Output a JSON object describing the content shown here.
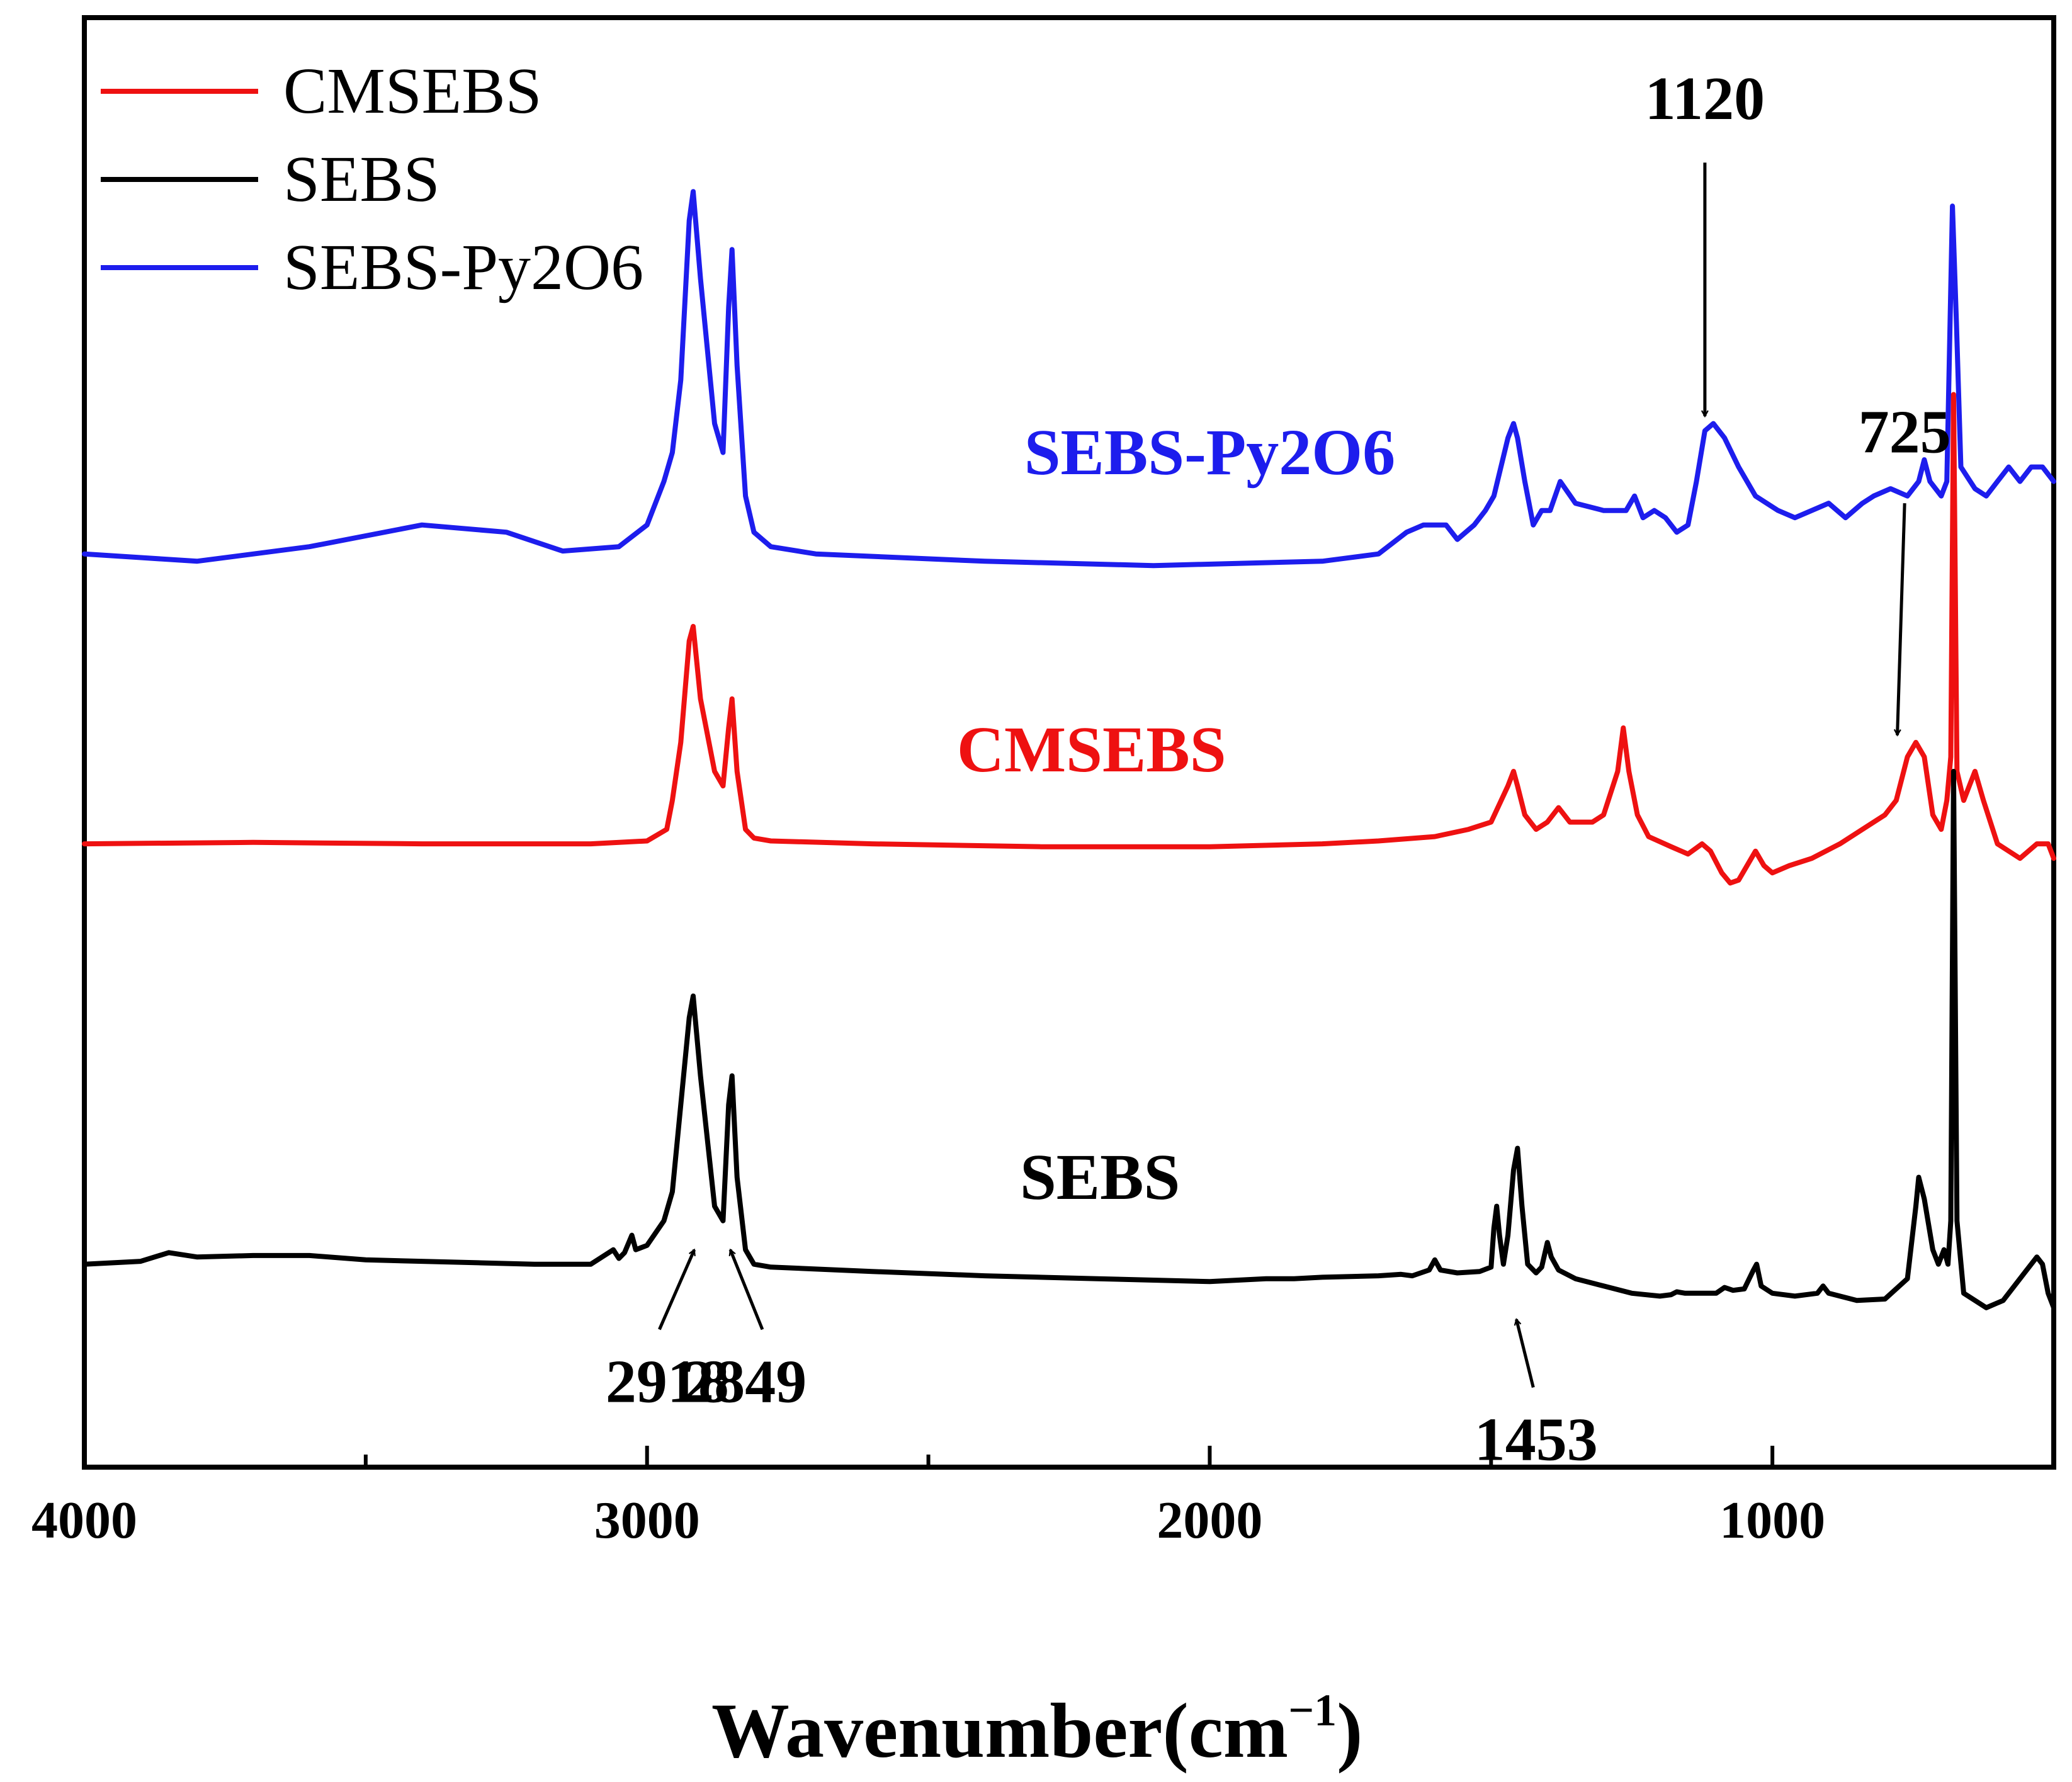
{
  "chart_data": {
    "type": "line",
    "title": "",
    "xlabel": "Wavenumber",
    "xlabel_unit": "(cm",
    "xlabel_sup": "−1",
    "xlabel_close": ")",
    "ylabel": "",
    "xlim": [
      4000,
      500
    ],
    "ylim": [
      0,
      100
    ],
    "x_reversed": true,
    "xticks": [
      4000,
      3000,
      2000,
      1000
    ],
    "xtick_labels": [
      "4000",
      "3000",
      "2000",
      "1000"
    ],
    "grid": false,
    "legend_position": "top-left",
    "legend": [
      {
        "label": "CMSEBS",
        "color": "#ee1111"
      },
      {
        "label": "SEBS",
        "color": "#000000"
      },
      {
        "label": "SEBS-Py2O6",
        "color": "#1d1ded"
      }
    ],
    "series": [
      {
        "name": "SEBS-Py2O6",
        "color": "#1d1ded",
        "inline_label": "SEBS-Py2O6",
        "label_at": [
          2000,
          68.5
        ],
        "points": [
          [
            4000,
            63
          ],
          [
            3800,
            62.5
          ],
          [
            3600,
            63.5
          ],
          [
            3400,
            65
          ],
          [
            3250,
            64.5
          ],
          [
            3150,
            63.2
          ],
          [
            3050,
            63.5
          ],
          [
            3000,
            65
          ],
          [
            2970,
            68
          ],
          [
            2955,
            70
          ],
          [
            2940,
            75
          ],
          [
            2925,
            86
          ],
          [
            2918,
            88
          ],
          [
            2905,
            82
          ],
          [
            2880,
            72
          ],
          [
            2865,
            70
          ],
          [
            2855,
            80
          ],
          [
            2849,
            84
          ],
          [
            2840,
            76
          ],
          [
            2825,
            67
          ],
          [
            2810,
            64.5
          ],
          [
            2780,
            63.5
          ],
          [
            2700,
            63
          ],
          [
            2400,
            62.5
          ],
          [
            2100,
            62.2
          ],
          [
            1800,
            62.5
          ],
          [
            1700,
            63
          ],
          [
            1650,
            64.5
          ],
          [
            1620,
            65
          ],
          [
            1580,
            65
          ],
          [
            1560,
            64
          ],
          [
            1530,
            65
          ],
          [
            1510,
            66
          ],
          [
            1495,
            67
          ],
          [
            1470,
            71
          ],
          [
            1460,
            72
          ],
          [
            1453,
            71
          ],
          [
            1440,
            68
          ],
          [
            1425,
            65
          ],
          [
            1410,
            66
          ],
          [
            1395,
            66
          ],
          [
            1377,
            68
          ],
          [
            1350,
            66.5
          ],
          [
            1300,
            66
          ],
          [
            1260,
            66
          ],
          [
            1245,
            67
          ],
          [
            1230,
            65.5
          ],
          [
            1210,
            66
          ],
          [
            1190,
            65.5
          ],
          [
            1170,
            64.5
          ],
          [
            1150,
            65
          ],
          [
            1135,
            68
          ],
          [
            1120,
            71.5
          ],
          [
            1105,
            72
          ],
          [
            1085,
            71
          ],
          [
            1060,
            69
          ],
          [
            1030,
            67
          ],
          [
            1010,
            66.5
          ],
          [
            990,
            66
          ],
          [
            960,
            65.5
          ],
          [
            930,
            66
          ],
          [
            900,
            66.5
          ],
          [
            870,
            65.5
          ],
          [
            840,
            66.5
          ],
          [
            820,
            67
          ],
          [
            790,
            67.5
          ],
          [
            760,
            67
          ],
          [
            740,
            68
          ],
          [
            730,
            69.5
          ],
          [
            720,
            68
          ],
          [
            700,
            67
          ],
          [
            690,
            68
          ],
          [
            680,
            87
          ],
          [
            673,
            79
          ],
          [
            665,
            69
          ],
          [
            640,
            67.5
          ],
          [
            620,
            67
          ],
          [
            600,
            68
          ],
          [
            580,
            69
          ],
          [
            560,
            68
          ],
          [
            540,
            69
          ],
          [
            520,
            69
          ],
          [
            500,
            68
          ]
        ]
      },
      {
        "name": "CMSEBS",
        "color": "#ee1111",
        "inline_label": "CMSEBS",
        "label_at": [
          2210,
          48
        ],
        "points": [
          [
            4000,
            43
          ],
          [
            3700,
            43.1
          ],
          [
            3400,
            43
          ],
          [
            3100,
            43
          ],
          [
            3000,
            43.2
          ],
          [
            2965,
            44
          ],
          [
            2955,
            46
          ],
          [
            2940,
            50
          ],
          [
            2925,
            57
          ],
          [
            2918,
            58
          ],
          [
            2905,
            53
          ],
          [
            2880,
            48
          ],
          [
            2865,
            47
          ],
          [
            2855,
            51
          ],
          [
            2849,
            53
          ],
          [
            2840,
            48
          ],
          [
            2825,
            44
          ],
          [
            2810,
            43.4
          ],
          [
            2780,
            43.2
          ],
          [
            2600,
            43
          ],
          [
            2300,
            42.8
          ],
          [
            2000,
            42.8
          ],
          [
            1800,
            43
          ],
          [
            1700,
            43.2
          ],
          [
            1600,
            43.5
          ],
          [
            1540,
            44
          ],
          [
            1500,
            44.5
          ],
          [
            1470,
            47
          ],
          [
            1460,
            48
          ],
          [
            1453,
            47
          ],
          [
            1440,
            45
          ],
          [
            1420,
            44
          ],
          [
            1400,
            44.5
          ],
          [
            1380,
            45.5
          ],
          [
            1360,
            44.5
          ],
          [
            1320,
            44.5
          ],
          [
            1300,
            45
          ],
          [
            1275,
            48
          ],
          [
            1265,
            51
          ],
          [
            1255,
            48
          ],
          [
            1240,
            45
          ],
          [
            1220,
            43.5
          ],
          [
            1180,
            42.8
          ],
          [
            1150,
            42.3
          ],
          [
            1125,
            43
          ],
          [
            1110,
            42.5
          ],
          [
            1090,
            41
          ],
          [
            1075,
            40.3
          ],
          [
            1060,
            40.5
          ],
          [
            1045,
            41.5
          ],
          [
            1030,
            42.5
          ],
          [
            1015,
            41.5
          ],
          [
            1000,
            41
          ],
          [
            970,
            41.5
          ],
          [
            930,
            42
          ],
          [
            880,
            43
          ],
          [
            840,
            44
          ],
          [
            800,
            45
          ],
          [
            780,
            46
          ],
          [
            760,
            49
          ],
          [
            745,
            50
          ],
          [
            730,
            49
          ],
          [
            715,
            45
          ],
          [
            700,
            44
          ],
          [
            690,
            46
          ],
          [
            683,
            49
          ],
          [
            678,
            74
          ],
          [
            672,
            48
          ],
          [
            660,
            46
          ],
          [
            650,
            47
          ],
          [
            640,
            48
          ],
          [
            625,
            46
          ],
          [
            600,
            43
          ],
          [
            560,
            42
          ],
          [
            530,
            43
          ],
          [
            510,
            43
          ],
          [
            500,
            42
          ]
        ]
      },
      {
        "name": "SEBS",
        "color": "#000000",
        "inline_label": "SEBS",
        "label_at": [
          2195,
          18.5
        ],
        "points": [
          [
            4000,
            14
          ],
          [
            3900,
            14.2
          ],
          [
            3850,
            14.8
          ],
          [
            3800,
            14.5
          ],
          [
            3700,
            14.6
          ],
          [
            3600,
            14.6
          ],
          [
            3500,
            14.3
          ],
          [
            3400,
            14.2
          ],
          [
            3300,
            14.1
          ],
          [
            3200,
            14
          ],
          [
            3100,
            14
          ],
          [
            3080,
            14.5
          ],
          [
            3060,
            15
          ],
          [
            3050,
            14.4
          ],
          [
            3040,
            14.8
          ],
          [
            3027,
            16
          ],
          [
            3020,
            15
          ],
          [
            3000,
            15.3
          ],
          [
            2970,
            17
          ],
          [
            2955,
            19
          ],
          [
            2940,
            25
          ],
          [
            2925,
            31
          ],
          [
            2918,
            32.5
          ],
          [
            2905,
            27
          ],
          [
            2880,
            18
          ],
          [
            2865,
            17
          ],
          [
            2855,
            25
          ],
          [
            2849,
            27
          ],
          [
            2840,
            20
          ],
          [
            2825,
            15
          ],
          [
            2810,
            14
          ],
          [
            2780,
            13.8
          ],
          [
            2600,
            13.5
          ],
          [
            2400,
            13.2
          ],
          [
            2200,
            13
          ],
          [
            2000,
            12.8
          ],
          [
            1900,
            13
          ],
          [
            1850,
            13
          ],
          [
            1800,
            13.1
          ],
          [
            1700,
            13.2
          ],
          [
            1660,
            13.3
          ],
          [
            1640,
            13.2
          ],
          [
            1610,
            13.6
          ],
          [
            1600,
            14.3
          ],
          [
            1590,
            13.6
          ],
          [
            1560,
            13.4
          ],
          [
            1520,
            13.5
          ],
          [
            1500,
            13.8
          ],
          [
            1495,
            16.5
          ],
          [
            1490,
            18
          ],
          [
            1485,
            16
          ],
          [
            1478,
            14
          ],
          [
            1470,
            16
          ],
          [
            1460,
            20.5
          ],
          [
            1453,
            22
          ],
          [
            1445,
            18
          ],
          [
            1435,
            14
          ],
          [
            1420,
            13.4
          ],
          [
            1410,
            13.8
          ],
          [
            1400,
            15.5
          ],
          [
            1393,
            14.5
          ],
          [
            1380,
            13.6
          ],
          [
            1350,
            13
          ],
          [
            1300,
            12.5
          ],
          [
            1250,
            12
          ],
          [
            1200,
            11.8
          ],
          [
            1180,
            11.9
          ],
          [
            1170,
            12.1
          ],
          [
            1155,
            12
          ],
          [
            1100,
            12
          ],
          [
            1085,
            12.4
          ],
          [
            1070,
            12.2
          ],
          [
            1050,
            12.3
          ],
          [
            1035,
            13.5
          ],
          [
            1028,
            14
          ],
          [
            1020,
            12.5
          ],
          [
            1000,
            12
          ],
          [
            960,
            11.8
          ],
          [
            920,
            12
          ],
          [
            910,
            12.5
          ],
          [
            900,
            12
          ],
          [
            850,
            11.5
          ],
          [
            800,
            11.6
          ],
          [
            760,
            13
          ],
          [
            745,
            18
          ],
          [
            740,
            20
          ],
          [
            730,
            18.5
          ],
          [
            715,
            15
          ],
          [
            705,
            14
          ],
          [
            695,
            15
          ],
          [
            688,
            14
          ],
          [
            683,
            17
          ],
          [
            678,
            48
          ],
          [
            672,
            17
          ],
          [
            660,
            12
          ],
          [
            640,
            11.5
          ],
          [
            620,
            11
          ],
          [
            590,
            11.5
          ],
          [
            570,
            12.5
          ],
          [
            550,
            13.5
          ],
          [
            530,
            14.5
          ],
          [
            520,
            14
          ],
          [
            510,
            12
          ],
          [
            500,
            11
          ]
        ]
      }
    ],
    "annotations": [
      {
        "label": "1120",
        "text_at": [
          1120,
          93
        ],
        "arrow_from": [
          1120,
          90
        ],
        "arrow_to": [
          1120,
          72.5
        ]
      },
      {
        "label": "725",
        "text_at": [
          765,
          70
        ],
        "arrow_from": [
          765,
          66.5
        ],
        "arrow_to": [
          778,
          50.5
        ]
      },
      {
        "label": "2918",
        "text_at": [
          2964,
          4.5
        ],
        "arrow_from": [
          2978,
          9.5
        ],
        "arrow_to": [
          2916,
          15
        ]
      },
      {
        "label": "2849",
        "text_at": [
          2826,
          4.5
        ],
        "arrow_from": [
          2795,
          9.5
        ],
        "arrow_to": [
          2852,
          15
        ]
      },
      {
        "label": "1453",
        "text_at": [
          1420,
          0.5
        ],
        "arrow_from": [
          1425,
          5.5
        ],
        "arrow_to": [
          1455,
          10.2
        ]
      }
    ]
  }
}
